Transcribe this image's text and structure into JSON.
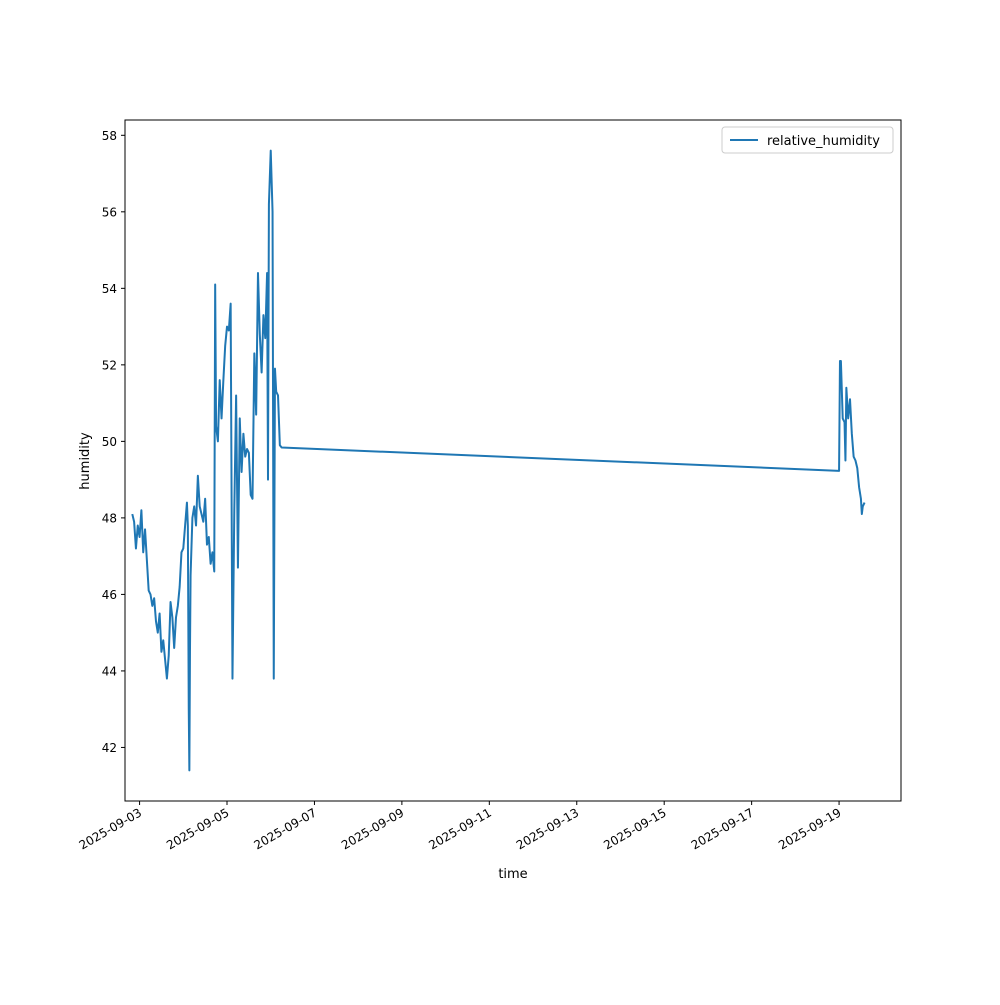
{
  "chart_data": {
    "type": "line",
    "title": "",
    "xlabel": "time",
    "ylabel": "humidity",
    "x_ticks": [
      "2025-09-03",
      "2025-09-05",
      "2025-09-07",
      "2025-09-09",
      "2025-09-11",
      "2025-09-13",
      "2025-09-15",
      "2025-09-17",
      "2025-09-19"
    ],
    "y_ticks": [
      42,
      44,
      46,
      48,
      50,
      52,
      54,
      56,
      58
    ],
    "xlim": [
      "2025-09-02T16:00",
      "2025-09-20T10:00"
    ],
    "ylim": [
      40.6,
      58.4
    ],
    "legend_position": "top-right",
    "grid": false,
    "color": "#1f77b4",
    "series": [
      {
        "name": "relative_humidity",
        "points": [
          [
            "2025-09-02T20:00",
            48.1
          ],
          [
            "2025-09-02T21:00",
            47.9
          ],
          [
            "2025-09-02T22:00",
            47.2
          ],
          [
            "2025-09-02T23:00",
            47.8
          ],
          [
            "2025-09-03T00:00",
            47.5
          ],
          [
            "2025-09-03T01:00",
            48.2
          ],
          [
            "2025-09-03T02:00",
            47.1
          ],
          [
            "2025-09-03T03:00",
            47.7
          ],
          [
            "2025-09-03T04:00",
            46.9
          ],
          [
            "2025-09-03T05:00",
            46.1
          ],
          [
            "2025-09-03T06:00",
            46.0
          ],
          [
            "2025-09-03T07:00",
            45.7
          ],
          [
            "2025-09-03T08:00",
            45.9
          ],
          [
            "2025-09-03T09:00",
            45.3
          ],
          [
            "2025-09-03T10:00",
            45.0
          ],
          [
            "2025-09-03T11:00",
            45.5
          ],
          [
            "2025-09-03T12:00",
            44.5
          ],
          [
            "2025-09-03T13:00",
            44.8
          ],
          [
            "2025-09-03T14:00",
            44.3
          ],
          [
            "2025-09-03T15:00",
            43.8
          ],
          [
            "2025-09-03T16:00",
            44.4
          ],
          [
            "2025-09-03T17:00",
            45.8
          ],
          [
            "2025-09-03T18:00",
            45.4
          ],
          [
            "2025-09-03T19:00",
            44.6
          ],
          [
            "2025-09-03T20:00",
            45.4
          ],
          [
            "2025-09-03T21:00",
            45.7
          ],
          [
            "2025-09-03T22:00",
            46.2
          ],
          [
            "2025-09-03T23:00",
            47.1
          ],
          [
            "2025-09-04T00:00",
            47.2
          ],
          [
            "2025-09-04T01:00",
            47.8
          ],
          [
            "2025-09-04T02:00",
            48.4
          ],
          [
            "2025-09-04T02:30",
            47.8
          ],
          [
            "2025-09-04T03:00",
            43.0
          ],
          [
            "2025-09-04T03:20",
            41.4
          ],
          [
            "2025-09-04T03:40",
            44.5
          ],
          [
            "2025-09-04T04:00",
            46.5
          ],
          [
            "2025-09-04T05:00",
            48.0
          ],
          [
            "2025-09-04T06:00",
            48.3
          ],
          [
            "2025-09-04T07:00",
            47.8
          ],
          [
            "2025-09-04T08:00",
            49.1
          ],
          [
            "2025-09-04T09:00",
            48.3
          ],
          [
            "2025-09-04T10:00",
            48.1
          ],
          [
            "2025-09-04T11:00",
            47.9
          ],
          [
            "2025-09-04T12:00",
            48.5
          ],
          [
            "2025-09-04T13:00",
            47.3
          ],
          [
            "2025-09-04T14:00",
            47.5
          ],
          [
            "2025-09-04T15:00",
            46.8
          ],
          [
            "2025-09-04T16:00",
            47.1
          ],
          [
            "2025-09-04T17:00",
            46.6
          ],
          [
            "2025-09-04T17:30",
            54.1
          ],
          [
            "2025-09-04T18:00",
            50.4
          ],
          [
            "2025-09-04T19:00",
            50.0
          ],
          [
            "2025-09-04T20:00",
            51.6
          ],
          [
            "2025-09-04T21:00",
            50.6
          ],
          [
            "2025-09-04T22:00",
            51.6
          ],
          [
            "2025-09-04T23:00",
            52.5
          ],
          [
            "2025-09-05T00:00",
            53.0
          ],
          [
            "2025-09-05T01:00",
            52.9
          ],
          [
            "2025-09-05T02:00",
            53.6
          ],
          [
            "2025-09-05T03:00",
            43.8
          ],
          [
            "2025-09-05T04:00",
            48.2
          ],
          [
            "2025-09-05T05:00",
            51.2
          ],
          [
            "2025-09-05T06:00",
            46.7
          ],
          [
            "2025-09-05T07:00",
            50.6
          ],
          [
            "2025-09-05T08:00",
            49.2
          ],
          [
            "2025-09-05T09:00",
            50.2
          ],
          [
            "2025-09-05T10:00",
            49.6
          ],
          [
            "2025-09-05T11:00",
            49.8
          ],
          [
            "2025-09-05T12:00",
            49.7
          ],
          [
            "2025-09-05T13:00",
            48.6
          ],
          [
            "2025-09-05T14:00",
            48.5
          ],
          [
            "2025-09-05T15:00",
            52.3
          ],
          [
            "2025-09-05T16:00",
            50.7
          ],
          [
            "2025-09-05T17:00",
            54.4
          ],
          [
            "2025-09-05T18:00",
            52.8
          ],
          [
            "2025-09-05T19:00",
            51.8
          ],
          [
            "2025-09-05T20:00",
            53.3
          ],
          [
            "2025-09-05T21:00",
            52.7
          ],
          [
            "2025-09-05T22:00",
            54.4
          ],
          [
            "2025-09-05T22:30",
            49.0
          ],
          [
            "2025-09-05T23:00",
            56.2
          ],
          [
            "2025-09-06T00:00",
            57.6
          ],
          [
            "2025-09-06T01:00",
            56.0
          ],
          [
            "2025-09-06T01:40",
            43.8
          ],
          [
            "2025-09-06T02:20",
            51.9
          ],
          [
            "2025-09-06T03:00",
            51.3
          ],
          [
            "2025-09-06T04:00",
            51.2
          ],
          [
            "2025-09-06T05:00",
            49.9
          ],
          [
            "2025-09-06T06:00",
            49.84
          ],
          [
            "2025-09-19T00:00",
            49.23
          ],
          [
            "2025-09-19T00:30",
            52.1
          ],
          [
            "2025-09-19T01:00",
            52.1
          ],
          [
            "2025-09-19T02:00",
            50.6
          ],
          [
            "2025-09-19T03:00",
            50.5
          ],
          [
            "2025-09-19T03:30",
            49.5
          ],
          [
            "2025-09-19T04:00",
            51.4
          ],
          [
            "2025-09-19T05:00",
            50.6
          ],
          [
            "2025-09-19T06:00",
            51.1
          ],
          [
            "2025-09-19T07:00",
            50.2
          ],
          [
            "2025-09-19T08:00",
            49.6
          ],
          [
            "2025-09-19T09:00",
            49.5
          ],
          [
            "2025-09-19T10:00",
            49.3
          ],
          [
            "2025-09-19T11:00",
            48.8
          ],
          [
            "2025-09-19T12:00",
            48.5
          ],
          [
            "2025-09-19T12:30",
            48.1
          ],
          [
            "2025-09-19T13:00",
            48.3
          ],
          [
            "2025-09-19T14:00",
            48.4
          ]
        ]
      }
    ]
  }
}
